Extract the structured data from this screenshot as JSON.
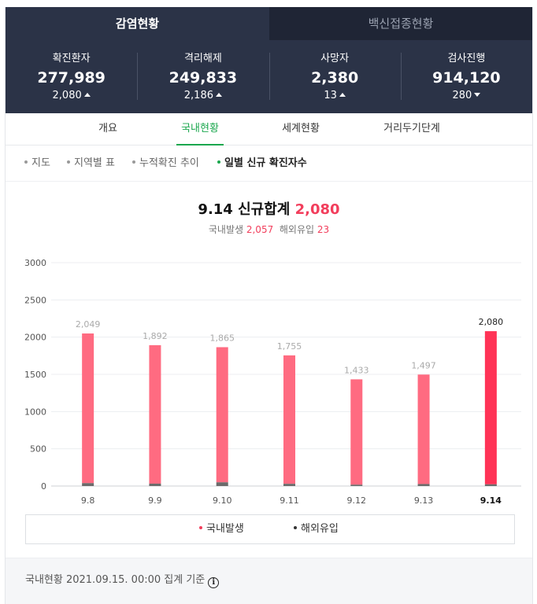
{
  "top_tabs": [
    {
      "label": "감염현황",
      "active": true
    },
    {
      "label": "백신접종현황",
      "active": false
    }
  ],
  "stats": [
    {
      "label": "확진환자",
      "value": "277,989",
      "delta": "2,080",
      "direction": "up"
    },
    {
      "label": "격리해제",
      "value": "249,833",
      "delta": "2,186",
      "direction": "up"
    },
    {
      "label": "사망자",
      "value": "2,380",
      "delta": "13",
      "direction": "up"
    },
    {
      "label": "검사진행",
      "value": "914,120",
      "delta": "280",
      "direction": "down"
    }
  ],
  "sub_tabs": [
    {
      "label": "개요",
      "active": false
    },
    {
      "label": "국내현황",
      "active": true
    },
    {
      "label": "세계현황",
      "active": false
    },
    {
      "label": "거리두기단계",
      "active": false
    }
  ],
  "filters": [
    {
      "label": "지도",
      "active": false
    },
    {
      "label": "지역별 표",
      "active": false
    },
    {
      "label": "누적확진 추이",
      "active": false
    },
    {
      "label": "일별 신규 확진자수",
      "active": true
    }
  ],
  "headline": {
    "prefix": "9.14 신규합계",
    "total": "2,080",
    "domestic_label": "국내발생",
    "domestic_value": "2,057",
    "overseas_label": "해외유입",
    "overseas_value": "23"
  },
  "chart_data": {
    "type": "bar",
    "stacked": true,
    "categories": [
      "9.8",
      "9.9",
      "9.10",
      "9.11",
      "9.12",
      "9.13",
      "9.14"
    ],
    "totals": [
      2049,
      1892,
      1865,
      1755,
      1433,
      1497,
      2080
    ],
    "total_labels": [
      "2,049",
      "1,892",
      "1,865",
      "1,755",
      "1,433",
      "1,497",
      "2,080"
    ],
    "series": [
      {
        "name": "국내발생",
        "values": [
          2010,
          1860,
          1815,
          1725,
          1415,
          1470,
          2057
        ],
        "color": "#ff6b81",
        "highlight_color": "#ff3356"
      },
      {
        "name": "해외유입",
        "values": [
          39,
          32,
          50,
          30,
          18,
          27,
          23
        ],
        "color": "#6b6b6b"
      }
    ],
    "yticks": [
      0,
      500,
      1000,
      1500,
      2000,
      2500,
      3000
    ],
    "ylim": [
      0,
      3000
    ],
    "highlight_index": 6,
    "grid": true,
    "legend": "bottom"
  },
  "legend": [
    {
      "label": "국내발생",
      "color": "#f23e5c"
    },
    {
      "label": "해외유입",
      "color": "#333333"
    }
  ],
  "footer": {
    "text": "국내현황 2021.09.15. 00:00 집계 기준",
    "info_icon": "info-icon"
  }
}
